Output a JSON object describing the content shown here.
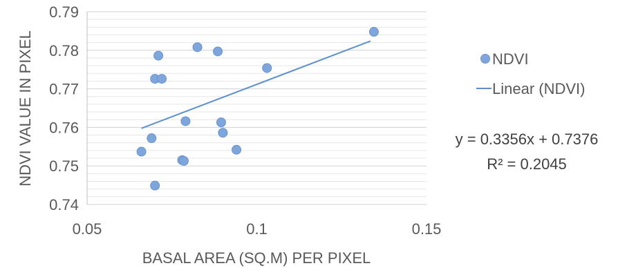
{
  "chart_data": {
    "type": "scatter",
    "title": "",
    "xlabel": "BASAL AREA (SQ.M) PER PIXEL",
    "ylabel": "NDVI VALUE IN PIXEL",
    "xlim": [
      0.05,
      0.15
    ],
    "ylim": [
      0.74,
      0.79
    ],
    "x_ticks": [
      "0.05",
      "0.1",
      "0.15"
    ],
    "y_ticks": [
      "0.74",
      "0.75",
      "0.76",
      "0.77",
      "0.78",
      "0.79"
    ],
    "grid": "horizontal major and minor",
    "legend_position": "right",
    "series": [
      {
        "name": "NDVI",
        "marker_color": "#7ea6dc",
        "points": [
          {
            "x": 0.066,
            "y": 0.7537
          },
          {
            "x": 0.069,
            "y": 0.7572
          },
          {
            "x": 0.07,
            "y": 0.7726
          },
          {
            "x": 0.07,
            "y": 0.7449
          },
          {
            "x": 0.071,
            "y": 0.7786
          },
          {
            "x": 0.072,
            "y": 0.7726
          },
          {
            "x": 0.078,
            "y": 0.7515
          },
          {
            "x": 0.0785,
            "y": 0.7513
          },
          {
            "x": 0.079,
            "y": 0.7616
          },
          {
            "x": 0.0825,
            "y": 0.7808
          },
          {
            "x": 0.0885,
            "y": 0.7797
          },
          {
            "x": 0.0895,
            "y": 0.7613
          },
          {
            "x": 0.09,
            "y": 0.7586
          },
          {
            "x": 0.094,
            "y": 0.7542
          },
          {
            "x": 0.103,
            "y": 0.7754
          },
          {
            "x": 0.1345,
            "y": 0.7848
          }
        ]
      },
      {
        "name": "Linear (NDVI)",
        "line_color": "#5b8fd0",
        "slope": 0.3356,
        "intercept": 0.7376,
        "x_range": [
          0.066,
          0.1335
        ]
      }
    ],
    "equation": "y = 0.3356x + 0.7376",
    "r_squared": "R² = 0.2045"
  }
}
